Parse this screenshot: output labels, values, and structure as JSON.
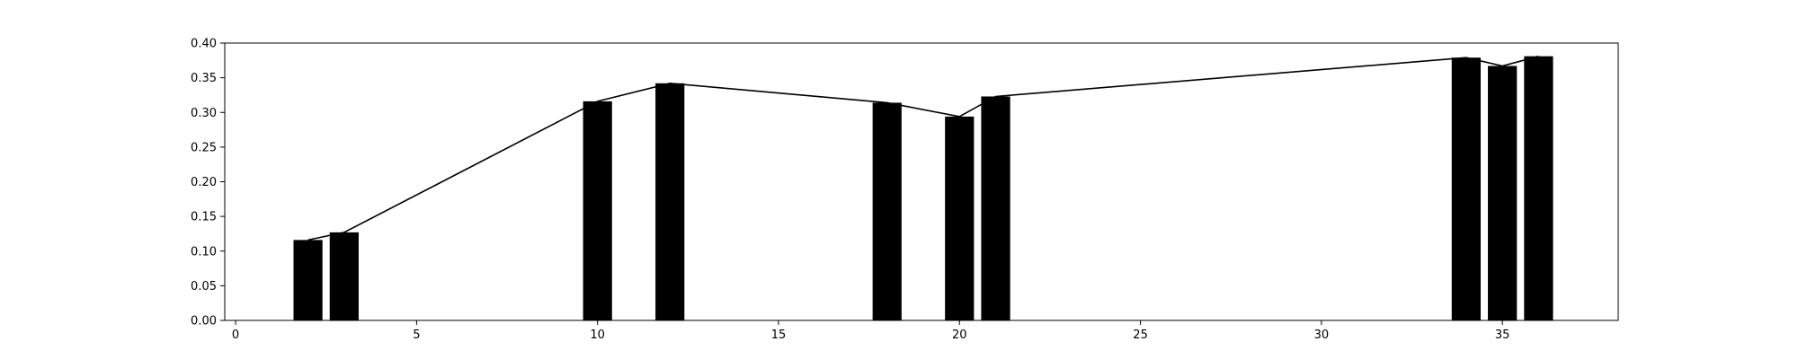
{
  "chart_data": {
    "type": "bar",
    "title": "",
    "xlabel": "",
    "ylabel": "",
    "xlim": [
      -0.3,
      38.2
    ],
    "ylim": [
      0,
      0.4
    ],
    "grid": false,
    "bar_color": "#000000",
    "line_color": "#000000",
    "bar_width": 0.8,
    "x_ticks": [
      0,
      5,
      10,
      15,
      20,
      25,
      30,
      35
    ],
    "y_ticks": [
      0.0,
      0.05,
      0.1,
      0.15,
      0.2,
      0.25,
      0.3,
      0.35,
      0.4
    ],
    "x_tick_labels": [
      "0",
      "5",
      "10",
      "15",
      "20",
      "25",
      "30",
      "35"
    ],
    "y_tick_labels": [
      "0.00",
      "0.05",
      "0.10",
      "0.15",
      "0.20",
      "0.25",
      "0.30",
      "0.35",
      "0.40"
    ],
    "x": [
      2,
      3,
      10,
      12,
      18,
      20,
      21,
      34,
      35,
      36
    ],
    "values": [
      0.116,
      0.127,
      0.316,
      0.342,
      0.314,
      0.294,
      0.323,
      0.379,
      0.367,
      0.381
    ]
  }
}
